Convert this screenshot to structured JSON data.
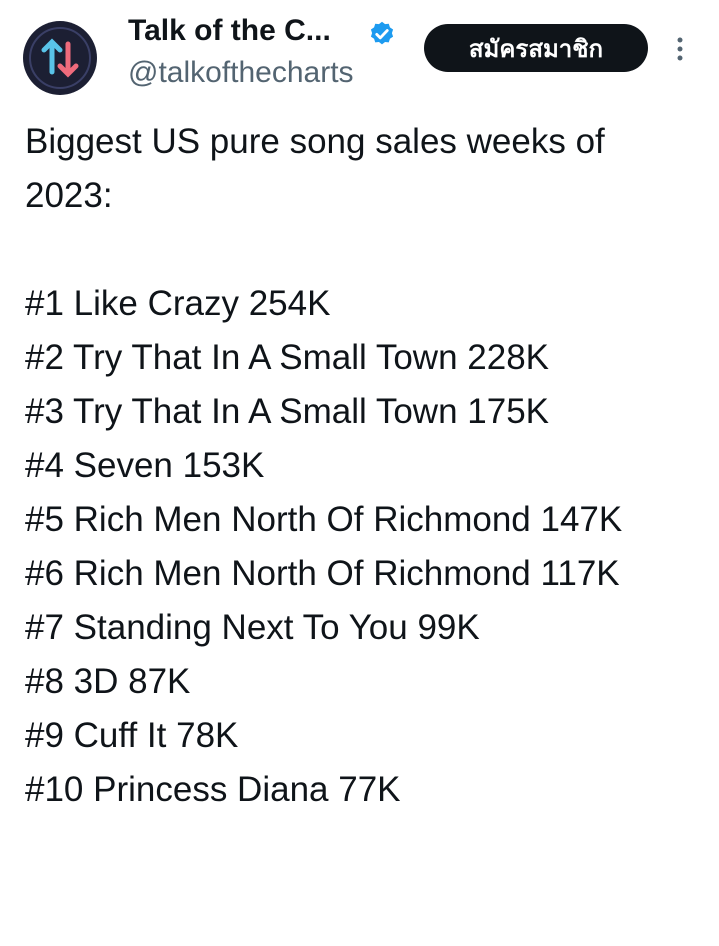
{
  "header": {
    "name": "Talk of the C...",
    "handle": "@talkofthecharts",
    "button": "สมัครสมาชิก"
  },
  "tweet": {
    "intro": "Biggest US pure song sales weeks of 2023:",
    "items": [
      "#1 Like Crazy 254K",
      "#2 Try That In A Small Town 228K",
      "#3 Try That In A Small Town 175K",
      "#4 Seven 153K",
      "#5 Rich Men North Of Richmond 147K",
      "#6 Rich Men North Of Richmond 117K",
      "#7 Standing Next To You 99K",
      "#8 3D 87K",
      "#9 Cuff It 78K",
      "#10 Princess Diana 77K"
    ]
  }
}
